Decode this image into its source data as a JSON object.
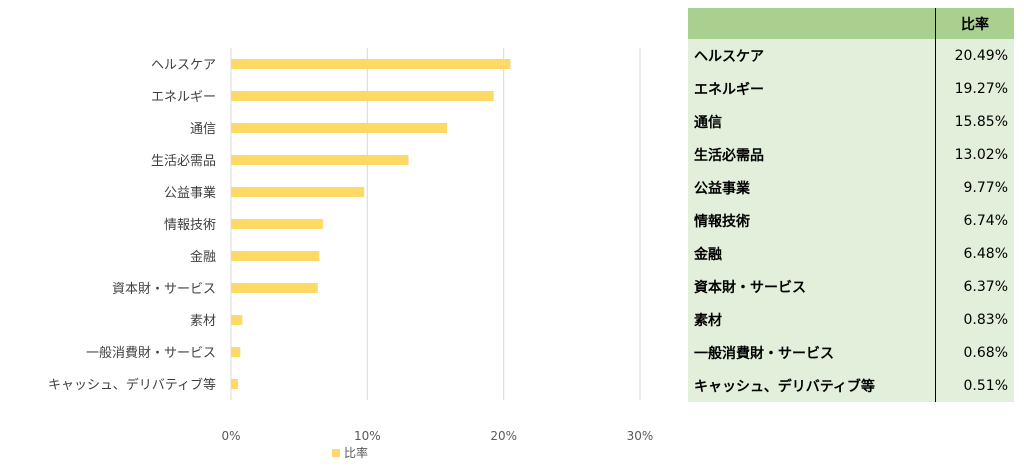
{
  "chart_data": {
    "type": "bar",
    "orientation": "horizontal",
    "categories": [
      "ヘルスケア",
      "エネルギー",
      "通信",
      "生活必需品",
      "公益事業",
      "情報技術",
      "金融",
      "資本財・サービス",
      "素材",
      "一般消費財・サービス",
      "キャッシュ、デリバティブ等"
    ],
    "series": [
      {
        "name": "比率",
        "values": [
          20.49,
          19.27,
          15.85,
          13.02,
          9.77,
          6.74,
          6.48,
          6.37,
          0.83,
          0.68,
          0.51
        ],
        "color": "#FFD966"
      }
    ],
    "xlim": [
      0,
      30
    ],
    "xticks": [
      "0%",
      "10%",
      "20%",
      "30%"
    ],
    "grid": true,
    "legend_position": "bottom"
  },
  "table": {
    "header_label": "",
    "header_value": "比率",
    "rows": [
      {
        "name": "ヘルスケア",
        "value": "20.49%"
      },
      {
        "name": "エネルギー",
        "value": "19.27%"
      },
      {
        "name": "通信",
        "value": "15.85%"
      },
      {
        "name": "生活必需品",
        "value": "13.02%"
      },
      {
        "name": "公益事業",
        "value": "9.77%"
      },
      {
        "name": "情報技術",
        "value": "6.74%"
      },
      {
        "name": "金融",
        "value": "6.48%"
      },
      {
        "name": "資本財・サービス",
        "value": "6.37%"
      },
      {
        "name": "素材",
        "value": "0.83%"
      },
      {
        "name": "一般消費財・サービス",
        "value": "0.68%"
      },
      {
        "name": "キャッシュ、デリバティブ等",
        "value": "0.51%"
      }
    ],
    "header_color": "#A9D08E",
    "row_color": "#E2EFDA"
  }
}
